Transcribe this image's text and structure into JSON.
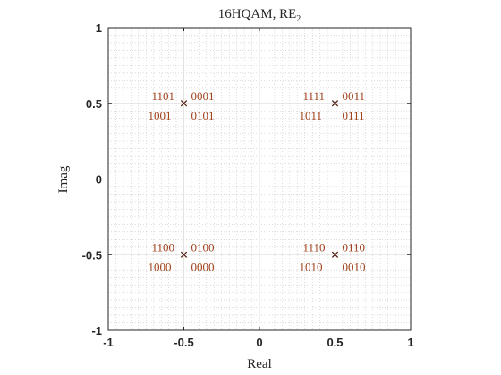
{
  "chart_data": {
    "type": "scatter",
    "title": "16HQAM, RE",
    "title_subscript": "2",
    "xlabel": "Real",
    "ylabel": "Imag",
    "xlim": [
      -1,
      1
    ],
    "ylim": [
      -1,
      1
    ],
    "xticks": [
      "-1",
      "-0.5",
      "0",
      "0.5",
      "1"
    ],
    "yticks": [
      "-1",
      "-0.5",
      "0",
      "0.5",
      "1"
    ],
    "grid": true,
    "minor_grid": true,
    "marker": "x",
    "color": "#a0401a",
    "marker_color": "#4d1a0a",
    "points": [
      {
        "x": -0.5,
        "y": 0.5,
        "labels": [
          "1101",
          "0001",
          "1001",
          "0101"
        ]
      },
      {
        "x": 0.5,
        "y": 0.5,
        "labels": [
          "1111",
          "0011",
          "1011",
          "0111"
        ]
      },
      {
        "x": -0.5,
        "y": -0.5,
        "labels": [
          "1100",
          "0100",
          "1000",
          "0000"
        ]
      },
      {
        "x": 0.5,
        "y": -0.5,
        "labels": [
          "1110",
          "0110",
          "1010",
          "0010"
        ]
      }
    ]
  }
}
